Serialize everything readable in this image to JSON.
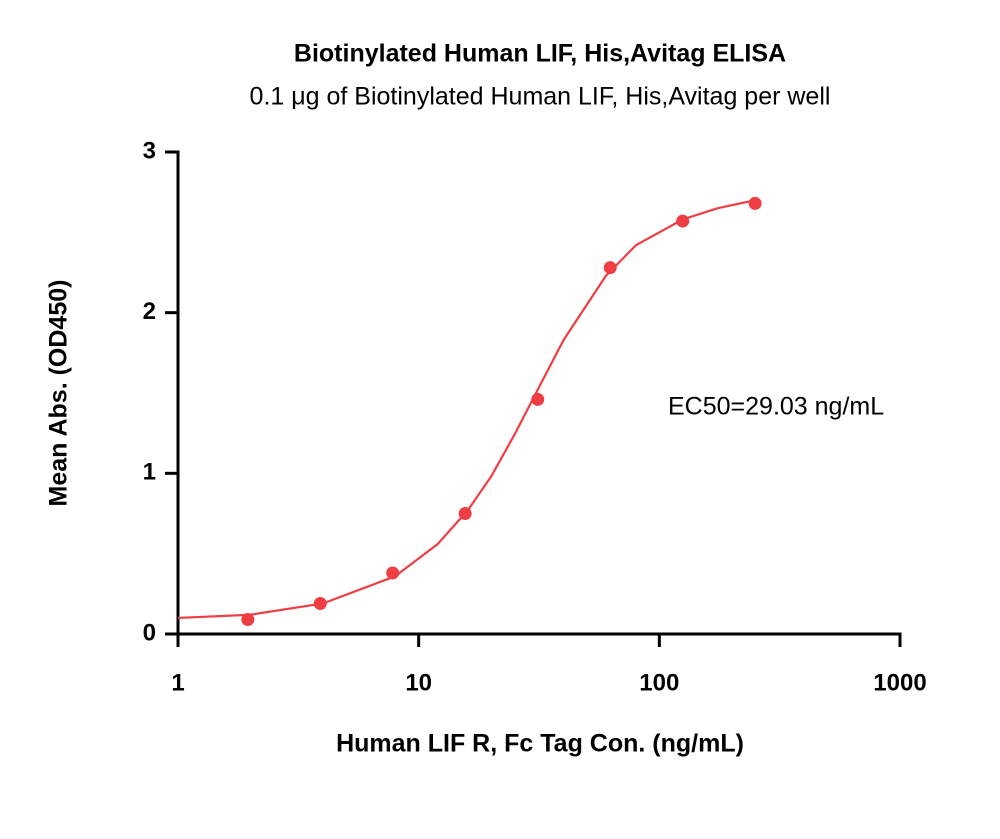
{
  "chart_data": {
    "type": "scatter",
    "title": "Biotinylated Human LIF, His,Avitag ELISA",
    "subtitle": "0.1 μg of Biotinylated Human LIF, His,Avitag per well",
    "xlabel": "Human LIF R, Fc Tag Con. (ng/mL)",
    "ylabel": "Mean Abs. (OD450)",
    "annotation": "EC50=29.03 ng/mL",
    "xscale": "log",
    "xlim": [
      1,
      1000
    ],
    "xticks": [
      1,
      10,
      100,
      1000
    ],
    "ylim": [
      0,
      3
    ],
    "yticks": [
      0,
      1,
      2,
      3
    ],
    "series": [
      {
        "type": "scatter",
        "color": "#ee3e44",
        "x": [
          1.95,
          3.9,
          7.8,
          15.6,
          31.25,
          62.5,
          125,
          250
        ],
        "values": [
          0.09,
          0.19,
          0.38,
          0.75,
          1.46,
          2.28,
          2.57,
          2.68
        ]
      },
      {
        "type": "line",
        "color": "#ee3e44",
        "x": [
          1,
          2,
          4,
          8,
          12,
          16,
          20,
          25,
          30,
          40,
          60,
          80,
          125,
          175,
          250
        ],
        "values": [
          0.1,
          0.12,
          0.19,
          0.36,
          0.56,
          0.77,
          0.98,
          1.24,
          1.47,
          1.83,
          2.23,
          2.42,
          2.58,
          2.65,
          2.7
        ]
      }
    ]
  }
}
